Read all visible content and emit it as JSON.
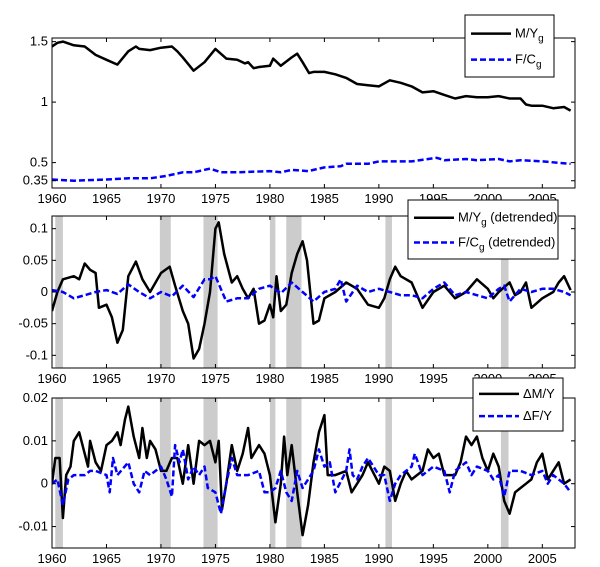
{
  "colors": {
    "black_series": "#000000",
    "blue_series": "#0000ff",
    "recession_shade": "#cccccc"
  },
  "chart_data": [
    {
      "type": "line",
      "xlim": [
        1960,
        2008
      ],
      "ylim": [
        0.29,
        1.53
      ],
      "x_ticks": [
        "1960",
        "1965",
        "1970",
        "1975",
        "1980",
        "1985",
        "1990",
        "1995",
        "2000",
        "2005"
      ],
      "y_ticks": [
        "0.35",
        "0.5",
        "1",
        "1.5"
      ],
      "legend": "top-right",
      "recessions": [],
      "series": [
        {
          "name": "M/Y",
          "name_sub": "g",
          "color": "#000000",
          "style": "solid",
          "x": [
            1960,
            1960.5,
            1961,
            1962,
            1963,
            1964,
            1965,
            1966,
            1967,
            1967.7,
            1968,
            1969,
            1970,
            1971,
            1971.5,
            1972,
            1973,
            1974,
            1975,
            1976,
            1977,
            1977.7,
            1978,
            1978.5,
            1979,
            1980,
            1980.3,
            1981,
            1982,
            1982.5,
            1983,
            1983.6,
            1984,
            1985,
            1986,
            1987,
            1988,
            1989,
            1990,
            1991,
            1992,
            1993,
            1994,
            1995,
            1996,
            1997,
            1998,
            1999,
            2000,
            2001,
            2002,
            2003,
            2003.5,
            2004,
            2005,
            2006,
            2007,
            2007.6
          ],
          "y": [
            1.46,
            1.49,
            1.5,
            1.47,
            1.46,
            1.39,
            1.35,
            1.31,
            1.42,
            1.46,
            1.44,
            1.43,
            1.45,
            1.46,
            1.42,
            1.37,
            1.26,
            1.33,
            1.44,
            1.36,
            1.35,
            1.32,
            1.33,
            1.28,
            1.29,
            1.3,
            1.36,
            1.3,
            1.37,
            1.4,
            1.33,
            1.24,
            1.25,
            1.25,
            1.23,
            1.2,
            1.15,
            1.14,
            1.13,
            1.18,
            1.16,
            1.13,
            1.08,
            1.09,
            1.06,
            1.03,
            1.05,
            1.04,
            1.04,
            1.05,
            1.03,
            1.03,
            0.98,
            0.97,
            0.97,
            0.95,
            0.96,
            0.93
          ]
        },
        {
          "name": "F/C",
          "name_sub": "g",
          "color": "#0000ff",
          "style": "dashed",
          "x": [
            1960,
            1962,
            1965,
            1967,
            1969,
            1970.5,
            1972,
            1973,
            1974.5,
            1975.5,
            1977,
            1980,
            1981,
            1982,
            1983.5,
            1985,
            1986.5,
            1987,
            1989,
            1990,
            1993,
            1995.3,
            1996,
            1998,
            1999,
            2001,
            2002,
            2003,
            2005,
            2007.6
          ],
          "y": [
            0.36,
            0.35,
            0.36,
            0.37,
            0.37,
            0.39,
            0.42,
            0.42,
            0.45,
            0.42,
            0.42,
            0.43,
            0.42,
            0.44,
            0.43,
            0.46,
            0.47,
            0.49,
            0.49,
            0.51,
            0.51,
            0.54,
            0.52,
            0.53,
            0.52,
            0.53,
            0.51,
            0.52,
            0.51,
            0.49
          ]
        }
      ]
    },
    {
      "type": "line",
      "xlim": [
        1960,
        2008
      ],
      "ylim": [
        -0.12,
        0.12
      ],
      "x_ticks": [
        "1960",
        "1965",
        "1970",
        "1975",
        "1980",
        "1985",
        "1990",
        "1995",
        "2000",
        "2005"
      ],
      "y_ticks": [
        "-0.1",
        "-0.05",
        "0",
        "0.05",
        "0.1"
      ],
      "legend": "top-right",
      "recessions": [
        [
          1960.3,
          1961.0
        ],
        [
          1969.9,
          1970.9
        ],
        [
          1973.9,
          1975.2
        ],
        [
          1980.0,
          1980.5
        ],
        [
          1981.5,
          1982.9
        ],
        [
          1990.6,
          1991.2
        ],
        [
          2001.2,
          2001.9
        ]
      ],
      "series": [
        {
          "name": "M/Y",
          "name_sub": "g",
          "name_suffix": " (detrended)",
          "color": "#000000",
          "style": "solid",
          "x": [
            1960,
            1960.5,
            1961,
            1962,
            1962.5,
            1963,
            1963.5,
            1964,
            1964.3,
            1965,
            1965.5,
            1966,
            1966.5,
            1967,
            1967.7,
            1968.3,
            1969,
            1970,
            1970.8,
            1971.3,
            1972,
            1972.5,
            1973,
            1973.5,
            1974,
            1974.5,
            1975,
            1975.3,
            1975.8,
            1976.5,
            1977,
            1977.5,
            1978,
            1978.5,
            1979,
            1979.5,
            1980,
            1980.3,
            1980.6,
            1981,
            1981.5,
            1982,
            1982.5,
            1983,
            1983.4,
            1984,
            1984.5,
            1985,
            1986,
            1987,
            1988,
            1989,
            1990,
            1990.5,
            1991,
            1991.5,
            1992,
            1993,
            1994,
            1995,
            1996,
            1997,
            1998,
            1999,
            2000,
            2000.5,
            2001,
            2002,
            2002.5,
            2003,
            2003.5,
            2004,
            2005,
            2006,
            2006.5,
            2007,
            2007.6
          ],
          "y": [
            -0.03,
            0.0,
            0.02,
            0.025,
            0.02,
            0.045,
            0.035,
            0.03,
            -0.025,
            -0.02,
            -0.04,
            -0.08,
            -0.06,
            0.025,
            0.048,
            0.02,
            0.0,
            0.03,
            0.04,
            0.01,
            -0.03,
            -0.05,
            -0.105,
            -0.09,
            -0.05,
            0.0,
            0.1,
            0.11,
            0.06,
            0.015,
            0.025,
            0.005,
            -0.01,
            0.005,
            -0.05,
            -0.045,
            -0.02,
            -0.04,
            0.025,
            -0.03,
            -0.02,
            0.03,
            0.06,
            0.08,
            0.05,
            -0.05,
            -0.045,
            -0.01,
            0.0,
            0.015,
            0.005,
            -0.02,
            -0.025,
            -0.01,
            0.02,
            0.04,
            0.025,
            0.015,
            -0.025,
            0.0,
            0.01,
            -0.01,
            0.0,
            0.02,
            0.005,
            -0.01,
            0.0,
            0.015,
            -0.005,
            0.0,
            0.015,
            -0.025,
            -0.01,
            0.0,
            0.015,
            0.025,
            0.003
          ]
        },
        {
          "name": "F/C",
          "name_sub": "g",
          "name_suffix": " (detrended)",
          "color": "#0000ff",
          "style": "dashed",
          "x": [
            1960,
            1961,
            1962,
            1963,
            1964,
            1965,
            1966,
            1967,
            1968,
            1969,
            1970,
            1971,
            1972,
            1973,
            1974,
            1974.5,
            1975,
            1976,
            1977,
            1978,
            1979,
            1980,
            1981,
            1982,
            1983,
            1984,
            1985,
            1986,
            1986.5,
            1987,
            1988,
            1989,
            1990,
            1991,
            1992,
            1993,
            1994,
            1995,
            1996,
            1997,
            1998,
            1999,
            2000,
            2001,
            2001.5,
            2002,
            2003,
            2004,
            2005,
            2006,
            2007,
            2007.6
          ],
          "y": [
            0.003,
            0.0,
            -0.01,
            -0.005,
            0.0,
            0.003,
            -0.003,
            0.012,
            0.0,
            -0.01,
            0.0,
            -0.007,
            0.01,
            -0.008,
            0.02,
            0.02,
            0.025,
            -0.015,
            -0.01,
            -0.01,
            0.005,
            0.01,
            -0.002,
            0.015,
            0.0,
            -0.015,
            0.0,
            0.005,
            0.02,
            -0.015,
            0.01,
            0.0,
            0.005,
            0.0,
            -0.005,
            -0.005,
            -0.01,
            0.005,
            0.015,
            -0.005,
            0.0,
            -0.005,
            -0.01,
            0.005,
            0.01,
            -0.015,
            0.005,
            0.0,
            0.005,
            0.005,
            0.0,
            -0.005
          ]
        }
      ]
    },
    {
      "type": "line",
      "xlim": [
        1960,
        2008
      ],
      "ylim": [
        -0.015,
        0.02
      ],
      "x_ticks": [
        "1960",
        "1965",
        "1970",
        "1975",
        "1980",
        "1985",
        "1990",
        "1995",
        "2000",
        "2005"
      ],
      "y_ticks": [
        "-0.01",
        "0",
        "0.01",
        "0.02"
      ],
      "legend": "top-right",
      "recessions": [
        [
          1960.3,
          1961.0
        ],
        [
          1969.9,
          1970.9
        ],
        [
          1973.9,
          1975.2
        ],
        [
          1980.0,
          1980.5
        ],
        [
          1981.5,
          1982.9
        ],
        [
          1990.6,
          1991.2
        ],
        [
          2001.2,
          2001.9
        ]
      ],
      "series": [
        {
          "name": "ΔM/Y",
          "color": "#000000",
          "style": "solid",
          "x": [
            1960,
            1960.3,
            1960.7,
            1961,
            1961.3,
            1961.7,
            1962,
            1962.5,
            1963,
            1963.3,
            1963.5,
            1964,
            1964.5,
            1965,
            1965.5,
            1966,
            1966.3,
            1966.7,
            1967,
            1967.5,
            1968,
            1968.3,
            1968.7,
            1969,
            1969.5,
            1970,
            1970.5,
            1971,
            1971.5,
            1972,
            1972.5,
            1973,
            1973.5,
            1974,
            1974.5,
            1975,
            1975.3,
            1975.6,
            1976,
            1976.5,
            1977,
            1977.5,
            1978,
            1978.3,
            1979,
            1979.5,
            1980,
            1980.5,
            1981,
            1981.3,
            1981.6,
            1982,
            1982.5,
            1983,
            1983.5,
            1984,
            1984.5,
            1985,
            1985.3,
            1986,
            1987,
            1987.5,
            1988,
            1988.5,
            1989,
            1990,
            1990.5,
            1991,
            1991.5,
            1992,
            1992.5,
            1993,
            1994,
            1994.5,
            1995,
            1995.5,
            1996,
            1997,
            1997.5,
            1998,
            1998.5,
            1999,
            1999.5,
            2000,
            2000.5,
            2001,
            2001.5,
            2002,
            2002.5,
            2003,
            2003.5,
            2004,
            2004.5,
            2005,
            2005.5,
            2006,
            2006.5,
            2007,
            2007.6
          ],
          "y": [
            0.0,
            0.006,
            0.006,
            -0.008,
            0.002,
            0.004,
            0.01,
            0.012,
            0.007,
            0.004,
            0.01,
            0.005,
            0.003,
            0.009,
            0.01,
            0.012,
            0.009,
            0.015,
            0.018,
            0.011,
            0.006,
            0.013,
            0.006,
            0.01,
            0.008,
            0.003,
            0.003,
            0.006,
            0.006,
            0.0,
            0.009,
            0.0,
            0.01,
            0.009,
            0.01,
            0.005,
            0.01,
            -0.006,
            0.0,
            0.009,
            0.003,
            0.007,
            0.013,
            0.006,
            0.009,
            0.007,
            0.002,
            -0.009,
            0.0,
            0.011,
            0.002,
            0.009,
            -0.002,
            -0.012,
            -0.005,
            0.005,
            0.012,
            0.016,
            0.002,
            0.002,
            0.003,
            -0.002,
            0.0,
            0.002,
            0.005,
            0.0,
            0.004,
            0.003,
            -0.004,
            0.0,
            0.003,
            0.001,
            0.003,
            0.008,
            0.006,
            0.007,
            0.002,
            0.002,
            0.005,
            0.011,
            0.009,
            0.011,
            0.006,
            0.003,
            0.007,
            0.004,
            -0.004,
            -0.007,
            -0.002,
            -0.001,
            0.0,
            0.001,
            0.005,
            0.007,
            0.001,
            0.003,
            0.005,
            0.0,
            0.001
          ]
        },
        {
          "name": "ΔF/Y",
          "color": "#0000ff",
          "style": "dashed",
          "x": [
            1960,
            1960.5,
            1961,
            1961.5,
            1962,
            1963,
            1963.5,
            1964,
            1965,
            1965.3,
            1965.6,
            1966,
            1967,
            1967.5,
            1968,
            1968.5,
            1969,
            1970,
            1970.5,
            1971,
            1971.3,
            1971.7,
            1972,
            1972.5,
            1973,
            1973.5,
            1974,
            1974.3,
            1975,
            1975.5,
            1976,
            1976.5,
            1977,
            1978,
            1979,
            1979.5,
            1980,
            1980.5,
            1981,
            1981.5,
            1982,
            1982.5,
            1983,
            1984,
            1984.5,
            1985,
            1985.5,
            1986,
            1987,
            1987.3,
            1987.6,
            1988,
            1988.5,
            1989,
            1990,
            1990.5,
            1991,
            1991.5,
            1992,
            1993,
            1993.3,
            1994,
            1995,
            1996,
            1996.5,
            1997,
            1998,
            1998.5,
            1999,
            2000,
            2000.5,
            2001,
            2001.5,
            2002,
            2003,
            2004,
            2005,
            2005.5,
            2006,
            2007,
            2007.6
          ],
          "y": [
            0.0,
            0.001,
            -0.005,
            0.001,
            0.002,
            0.002,
            0.003,
            0.003,
            0.002,
            -0.002,
            0.006,
            0.002,
            0.005,
            0.0,
            -0.002,
            0.003,
            0.002,
            0.004,
            0.001,
            -0.003,
            0.009,
            0.005,
            0.008,
            0.001,
            0.004,
            0.002,
            0.004,
            -0.001,
            -0.002,
            -0.007,
            0.0,
            0.006,
            0.002,
            0.002,
            0.003,
            -0.002,
            -0.002,
            -0.001,
            0.003,
            -0.002,
            -0.004,
            0.003,
            -0.001,
            0.003,
            0.008,
            0.004,
            0.005,
            -0.002,
            0.003,
            0.008,
            0.002,
            0.001,
            0.004,
            0.006,
            0.002,
            0.002,
            -0.004,
            0.0,
            0.002,
            0.004,
            0.007,
            0.002,
            0.004,
            0.003,
            -0.002,
            0.003,
            0.005,
            0.002,
            0.004,
            0.003,
            0.001,
            0.002,
            -0.003,
            0.003,
            0.003,
            0.002,
            0.003,
            0.0,
            0.002,
            0.0,
            -0.002
          ]
        }
      ]
    }
  ]
}
